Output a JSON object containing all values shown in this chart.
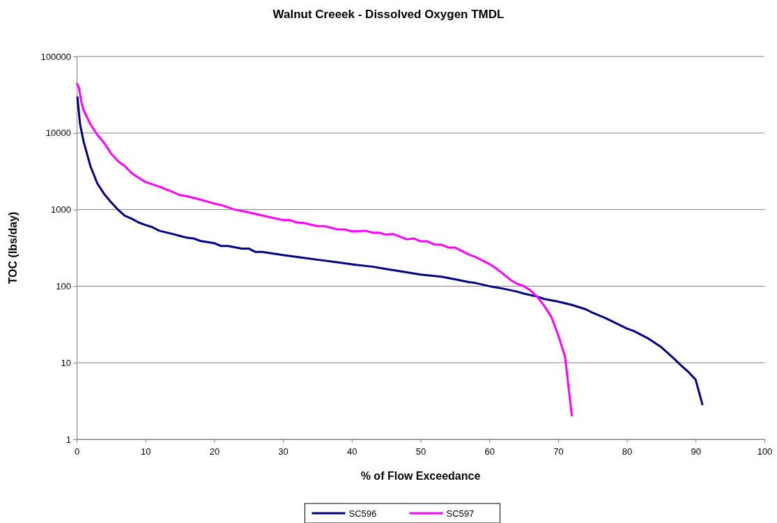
{
  "chart_data": {
    "type": "line",
    "title": "Walnut Creeek - Dissolved Oxygen TMDL",
    "xlabel": "% of Flow Exceedance",
    "ylabel": "TOC (lbs/day)",
    "log": "y",
    "grid": "y",
    "legend": "bottom",
    "marker": "none",
    "line_style": "solid",
    "xlim": [
      0,
      100
    ],
    "xticks": [
      0,
      10,
      20,
      30,
      40,
      50,
      60,
      70,
      80,
      90,
      100
    ],
    "ylim": [
      1,
      100000
    ],
    "yticks": [
      1,
      10,
      100,
      1000,
      10000,
      100000
    ],
    "series": [
      {
        "name": "SC596",
        "color": "#000080",
        "x": [
          0.1,
          0.5,
          1,
          2,
          3,
          4,
          5,
          6,
          7,
          8,
          9,
          10,
          11,
          12,
          14,
          16,
          17,
          18,
          20,
          21,
          22,
          24,
          25,
          26,
          27,
          30,
          33,
          35,
          38,
          40,
          43,
          45,
          48,
          50,
          53,
          55,
          57,
          58,
          60,
          62,
          64,
          65,
          67,
          68,
          70,
          72,
          74,
          75,
          77,
          80,
          81,
          83,
          85,
          87,
          88,
          89,
          90,
          91
        ],
        "values": [
          30000,
          13000,
          7800,
          3700,
          2200,
          1600,
          1250,
          1000,
          830,
          760,
          680,
          630,
          590,
          530,
          480,
          430,
          420,
          390,
          365,
          335,
          335,
          310,
          310,
          280,
          280,
          255,
          235,
          222,
          205,
          193,
          180,
          168,
          152,
          142,
          133,
          123,
          113,
          110,
          100,
          93,
          85,
          80,
          73,
          68,
          63,
          57,
          50,
          45,
          38,
          28,
          26,
          21,
          16,
          11,
          9,
          7.5,
          6,
          2.8
        ]
      },
      {
        "name": "SC597",
        "color": "#ff00ff",
        "x": [
          0,
          0.3,
          0.7,
          1,
          2,
          3,
          4,
          5,
          6,
          7,
          8,
          9,
          10,
          12,
          14,
          15,
          16,
          18,
          20,
          21,
          23,
          25,
          28,
          30,
          31,
          32,
          33,
          35,
          36,
          38,
          39,
          40,
          42,
          43,
          44,
          45,
          46,
          48,
          49,
          50,
          51,
          52,
          53,
          54,
          55,
          57,
          58,
          60,
          61,
          62,
          63,
          64,
          65,
          66,
          67,
          68,
          69,
          70,
          71,
          72
        ],
        "values": [
          45000,
          40000,
          25000,
          20000,
          13000,
          9500,
          7400,
          5400,
          4300,
          3700,
          3000,
          2600,
          2300,
          2000,
          1700,
          1550,
          1500,
          1350,
          1200,
          1150,
          1000,
          920,
          800,
          730,
          730,
          680,
          670,
          610,
          610,
          550,
          550,
          520,
          530,
          500,
          500,
          470,
          480,
          410,
          420,
          385,
          385,
          350,
          350,
          320,
          320,
          260,
          240,
          195,
          170,
          145,
          122,
          108,
          100,
          88,
          72,
          55,
          40,
          23,
          12,
          2
        ]
      }
    ]
  }
}
